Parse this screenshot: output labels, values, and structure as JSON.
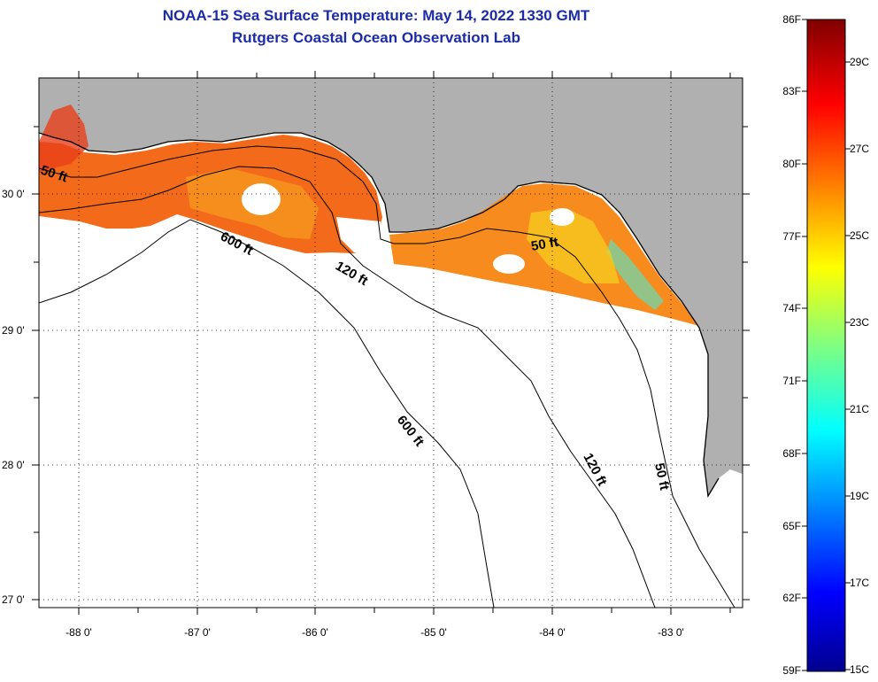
{
  "header": {
    "title_line1": "NOAA-15 Sea Surface Temperature:  May 14, 2022 1330 GMT",
    "title_line2": "Rutgers Coastal Ocean Observation Lab"
  },
  "map": {
    "lon_labels": [
      "-88 0'",
      "-87 0'",
      "-86 0'",
      "-85 0'",
      "-84 0'",
      "-83 0'"
    ],
    "lat_labels": [
      "30 0'",
      "29 0'",
      "28 0'",
      "27 0'"
    ],
    "contour_labels": [
      "50 ft",
      "600 ft",
      "120 ft",
      "50 ft",
      "600 ft",
      "120 ft",
      "50 ft"
    ],
    "colors": {
      "land": "#b0b0b0",
      "water": "#ffffff",
      "sst_warm": "#f26a1a"
    }
  },
  "colorbar": {
    "fahrenheit": [
      "86F",
      "83F",
      "80F",
      "77F",
      "74F",
      "71F",
      "68F",
      "65F",
      "62F",
      "59F"
    ],
    "celsius": [
      "29C",
      "27C",
      "25C",
      "23C",
      "21C",
      "19C",
      "17C",
      "15C"
    ]
  }
}
